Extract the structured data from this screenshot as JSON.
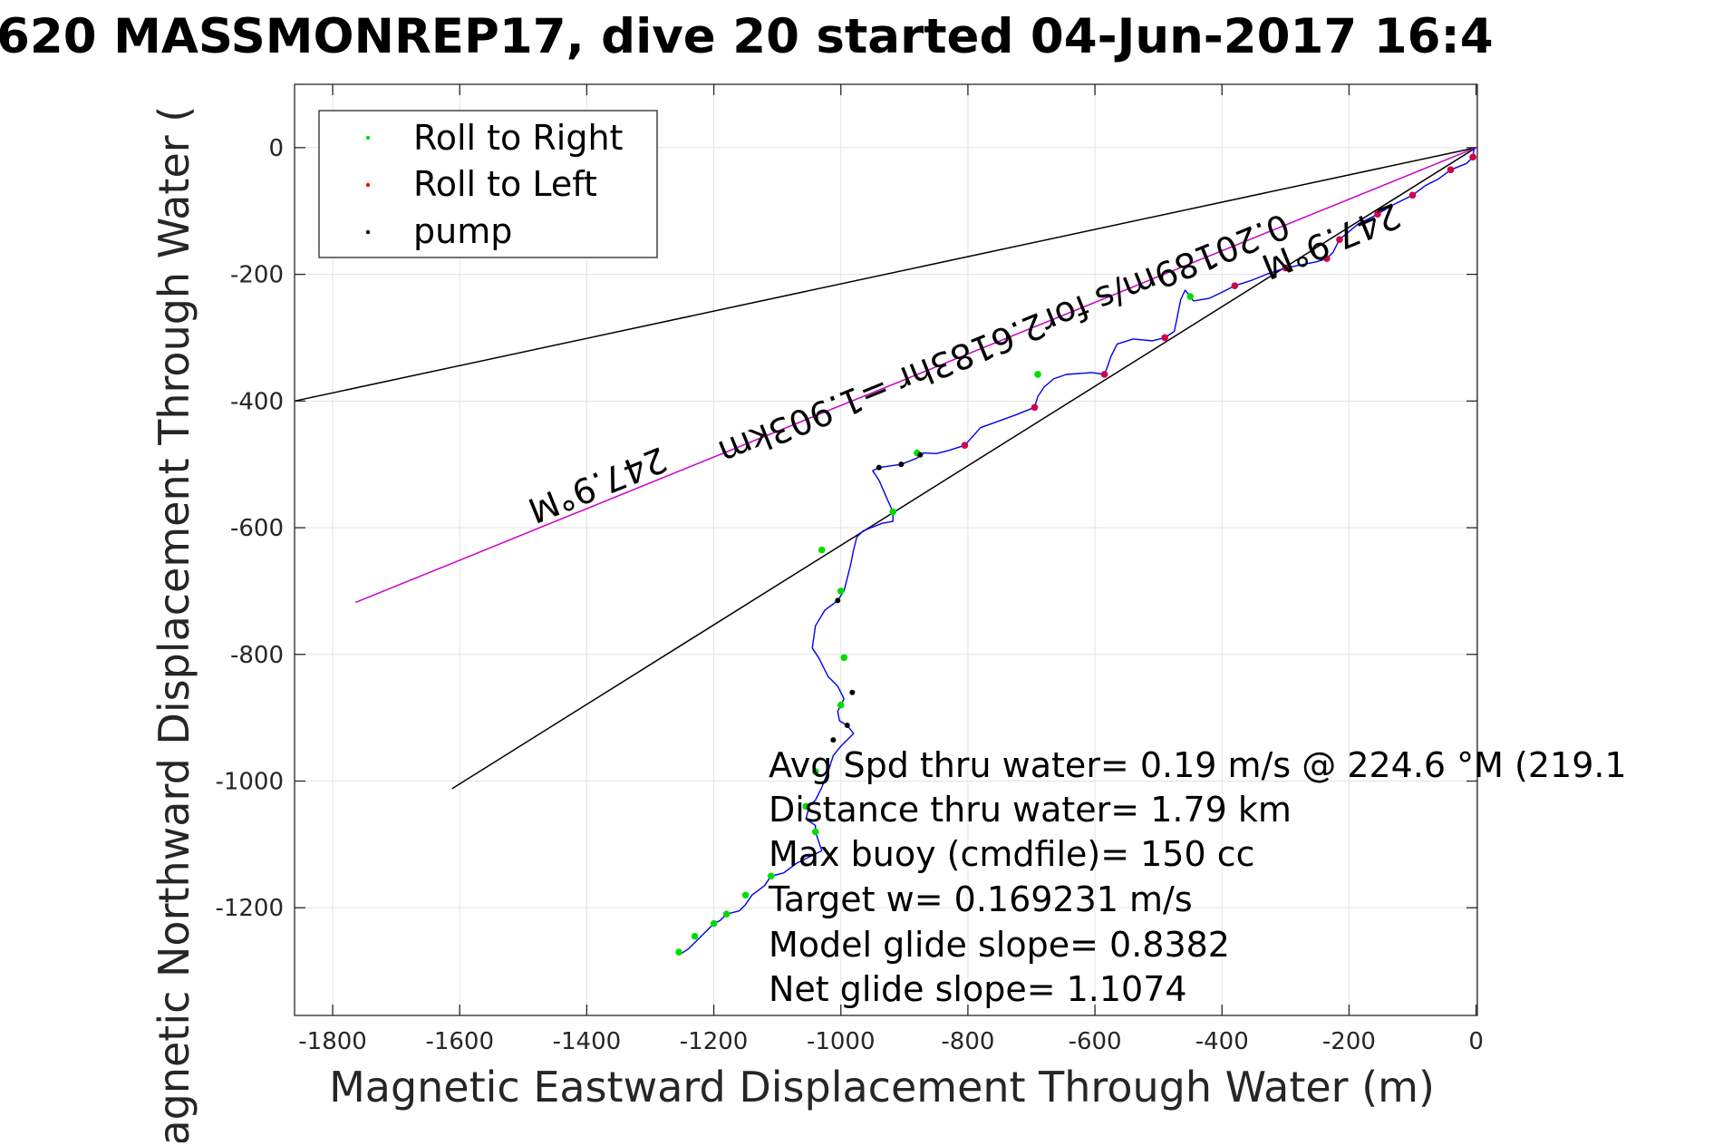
{
  "chart_data": {
    "type": "line",
    "title": "620 MASSMONREP17, dive 20 started 04-Jun-2017 16:4",
    "xlabel": "Magnetic Eastward Displacement Through Water (m)",
    "ylabel": "Magnetic Northward Displacement Through Water (",
    "xlim": [
      -1860,
      2
    ],
    "ylim": [
      -1370,
      100
    ],
    "xticks": [
      -1800,
      -1600,
      -1400,
      -1200,
      -1000,
      -800,
      -600,
      -400,
      -200,
      0
    ],
    "yticks": [
      0,
      -200,
      -400,
      -600,
      -800,
      -1000,
      -1200
    ],
    "grid": true,
    "legend_position": "top-left",
    "legend": [
      {
        "label": "Roll to Right",
        "color": "#00dd00"
      },
      {
        "label": "Roll to Left",
        "color": "#ff0000"
      },
      {
        "label": "pump",
        "color": "#000000"
      }
    ],
    "reference_lines": [
      {
        "x": [
          0,
          -1860
        ],
        "y": [
          0,
          -400
        ],
        "color": "#000000"
      },
      {
        "x": [
          0,
          -1612
        ],
        "y": [
          0,
          -1012
        ],
        "color": "#000000"
      },
      {
        "x": [
          0,
          -1764
        ],
        "y": [
          0,
          -718
        ],
        "color": "#cc00cc"
      }
    ],
    "annotations": [
      {
        "text": "247.9°M",
        "x": -1390,
        "y": -515,
        "angle_deg": 22.1
      },
      {
        "text": "0.20189m/s for2.6183hr =1.903km",
        "x": -750,
        "y": -285,
        "angle_deg": 22.1
      },
      {
        "text": "247.9°M",
        "x": -235,
        "y": -130,
        "angle_deg": 22.1
      }
    ],
    "series": [
      {
        "color": "#0000ee",
        "x": [
          -3,
          -5,
          -15,
          -40,
          -60,
          -80,
          -100,
          -130,
          -155,
          -185,
          -215,
          -225,
          -235,
          -250,
          -275,
          -300,
          -330,
          -355,
          -380,
          -400,
          -420,
          -445,
          -450,
          -458,
          -465,
          -475,
          -490,
          -510,
          -540,
          -565,
          -575,
          -580,
          -585,
          -605,
          -645,
          -665,
          -680,
          -690,
          -695,
          -725,
          -780,
          -805,
          -830,
          -850,
          -870,
          -880,
          -905,
          -940,
          -950,
          -940,
          -930,
          -918,
          -918,
          -935,
          -965,
          -975,
          -980,
          -985,
          -990,
          -995,
          -1005,
          -1025,
          -1040,
          -1045,
          -1035,
          -1020,
          -1005,
          -995,
          -1000,
          -1005,
          -1002,
          -990,
          -980,
          -990,
          -1000,
          -1012,
          -1020,
          -1030,
          -1040,
          -1050,
          -1055,
          -1040,
          -1040,
          -1030,
          -1050,
          -1070,
          -1090,
          -1110,
          -1120,
          -1140,
          -1150,
          -1160,
          -1180,
          -1190,
          -1200,
          -1210,
          -1220,
          -1230,
          -1240,
          -1255
        ],
        "y": [
          0,
          -15,
          -25,
          -35,
          -50,
          -60,
          -75,
          -90,
          -105,
          -120,
          -145,
          -165,
          -175,
          -180,
          -185,
          -190,
          -200,
          -210,
          -218,
          -228,
          -238,
          -242,
          -235,
          -225,
          -240,
          -290,
          -300,
          -305,
          -302,
          -310,
          -330,
          -345,
          -358,
          -355,
          -358,
          -365,
          -378,
          -393,
          -410,
          -422,
          -442,
          -470,
          -478,
          -483,
          -482,
          -490,
          -500,
          -505,
          -510,
          -525,
          -548,
          -575,
          -590,
          -593,
          -605,
          -615,
          -635,
          -660,
          -680,
          -700,
          -715,
          -730,
          -755,
          -790,
          -805,
          -835,
          -850,
          -870,
          -880,
          -890,
          -905,
          -912,
          -925,
          -935,
          -945,
          -960,
          -985,
          -1010,
          -1030,
          -1040,
          -1060,
          -1070,
          -1080,
          -1110,
          -1120,
          -1130,
          -1145,
          -1150,
          -1165,
          -1180,
          -1195,
          -1205,
          -1210,
          -1220,
          -1225,
          -1235,
          -1245,
          -1255,
          -1265,
          -1275
        ]
      }
    ],
    "markers": {
      "roll_right": {
        "x": [
          -450,
          -690,
          -880,
          -918,
          -1030,
          -1000,
          -995,
          -1000,
          -1040,
          -1055,
          -1040,
          -1110,
          -1150,
          -1180,
          -1200,
          -1230,
          -1255
        ],
        "y": [
          -235,
          -358,
          -482,
          -575,
          -635,
          -700,
          -805,
          -880,
          -985,
          -1040,
          -1080,
          -1150,
          -1180,
          -1210,
          -1225,
          -1245,
          -1270
        ]
      },
      "roll_left": {
        "x": [
          -5,
          -40,
          -100,
          -155,
          -215,
          -235,
          -300,
          -380,
          -490,
          -585,
          -695,
          -805
        ],
        "y": [
          -15,
          -35,
          -75,
          -105,
          -145,
          -175,
          -190,
          -218,
          -300,
          -358,
          -410,
          -470
        ]
      },
      "pump": {
        "x": [
          -940,
          -905,
          -875,
          -1005,
          -982,
          -990,
          -1012
        ],
        "y": [
          -505,
          -500,
          -485,
          -715,
          -860,
          -912,
          -935
        ]
      }
    }
  },
  "stats": [
    "Avg Spd thru water=  0.19 m/s @ 224.6 °M (219.1",
    "Distance thru water=  1.79 km",
    "Max buoy (cmdfile)= 150 cc",
    "Target w= 0.169231 m/s",
    "Model glide slope= 0.8382",
    "Net glide slope= 1.1074"
  ]
}
